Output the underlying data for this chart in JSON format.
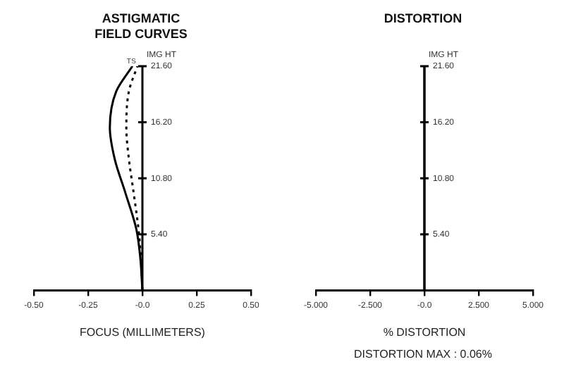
{
  "chart_data": [
    {
      "type": "line",
      "title": "ASTIGMATIC FIELD CURVES",
      "xlabel": "FOCUS (MILLIMETERS)",
      "ylabel": "IMG HT",
      "xlim": [
        -0.5,
        0.5
      ],
      "xticks": [
        {
          "value": -0.5,
          "label": "-0.50"
        },
        -0.25,
        {
          "value": 0,
          "label": "-0.0"
        },
        0.25,
        {
          "value": 0.5,
          "label": "0.50"
        }
      ],
      "ylim": [
        0,
        21.6
      ],
      "yticks": [
        {
          "value": 5.4,
          "label": "5.40"
        },
        {
          "value": 10.8,
          "label": "10.80"
        },
        {
          "value": 16.2,
          "label": "16.20"
        },
        {
          "value": 21.6,
          "label": "21.60"
        }
      ],
      "series": [
        {
          "name": "T",
          "color": "#000000",
          "line_style": "solid",
          "x": [
            0,
            -0.01,
            -0.028,
            -0.08,
            -0.127,
            -0.15,
            -0.12,
            -0.046
          ],
          "values": [
            0,
            3.2,
            5.9,
            9.5,
            12.6,
            15.7,
            19.2,
            21.6
          ]
        },
        {
          "name": "S",
          "color": "#000000",
          "line_style": "dotted",
          "x": [
            0,
            -0.007,
            -0.018,
            -0.041,
            -0.062,
            -0.074,
            -0.062,
            -0.023
          ],
          "values": [
            0,
            3.2,
            5.9,
            9.5,
            12.6,
            15.7,
            19.2,
            21.6
          ]
        }
      ]
    },
    {
      "type": "line",
      "title": "DISTORTION",
      "xlabel": "% DISTORTION",
      "ylabel": "IMG HT",
      "annotations": [
        "DISTORTION MAX : 0.06%"
      ],
      "xlim": [
        -5,
        5
      ],
      "xticks": [
        {
          "value": -5,
          "label": "-5.000"
        },
        {
          "value": -2.5,
          "label": "-2.500"
        },
        {
          "value": 0,
          "label": "-0.0"
        },
        {
          "value": 2.5,
          "label": "2.500"
        },
        {
          "value": 5,
          "label": "5.000"
        }
      ],
      "ylim": [
        0,
        21.6
      ],
      "yticks": [
        {
          "value": 5.4,
          "label": "5.40"
        },
        {
          "value": 10.8,
          "label": "10.80"
        },
        {
          "value": 16.2,
          "label": "16.20"
        },
        {
          "value": 21.6,
          "label": "21.60"
        }
      ],
      "series": [
        {
          "color": "#000000",
          "line_style": "solid",
          "x": [
            0,
            0,
            0,
            0,
            0
          ],
          "values": [
            0,
            5.4,
            10.8,
            16.2,
            21.6
          ]
        }
      ]
    }
  ]
}
